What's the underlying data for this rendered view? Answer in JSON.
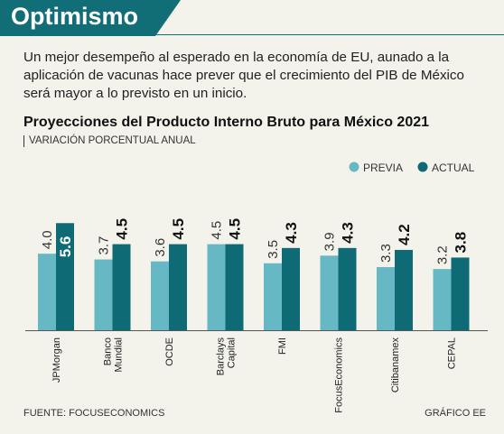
{
  "header": {
    "section_title": "Optimismo",
    "lede": "Un mejor desempeño al esperado en la economía de EU, aunado a la aplicación de vacunas hace prever que el crecimiento del PIB de México será mayor a lo previsto en un inicio."
  },
  "colors": {
    "previa": "#67b8c5",
    "actual": "#0e6a74",
    "accent": "#116e76"
  },
  "chart_data": {
    "type": "bar",
    "title": "Proyecciones del Producto Interno Bruto para México 2021",
    "subtitle": "VARIACIÓN PORCENTUAL ANUAL",
    "categories": [
      "JPMorgan",
      "Banco Mundial",
      "OCDE",
      "Barclays Capital",
      "FMI",
      "FocusEconomics",
      "Citibanamex",
      "CEPAL"
    ],
    "series": [
      {
        "name": "PREVIA",
        "values": [
          4.0,
          3.7,
          3.6,
          4.5,
          3.5,
          3.9,
          3.3,
          3.2
        ]
      },
      {
        "name": "ACTUAL",
        "values": [
          5.6,
          4.5,
          4.5,
          4.5,
          4.3,
          4.3,
          4.2,
          3.8
        ]
      }
    ],
    "value_labels_previa": [
      "4.0",
      "3.7",
      "3.6",
      "4.5",
      "3.5",
      "3.9",
      "3.3",
      "3.2"
    ],
    "value_labels_actual": [
      "5.6",
      "4.5",
      "4.5",
      "4.5",
      "4.3",
      "4.3",
      "4.2",
      "3.8"
    ],
    "category_labels": [
      [
        "JPMorgan"
      ],
      [
        "Banco",
        "Mundial"
      ],
      [
        "OCDE"
      ],
      [
        "Barclays",
        "Capital"
      ],
      [
        "FMI"
      ],
      [
        "FocusEconomics"
      ],
      [
        "Citibanamex"
      ],
      [
        "CEPAL"
      ]
    ],
    "legend_position": "top-right",
    "grid": false
  },
  "footer": {
    "source": "FUENTE: FOCUSECONOMICS",
    "credit": "GRÁFICO EE"
  }
}
